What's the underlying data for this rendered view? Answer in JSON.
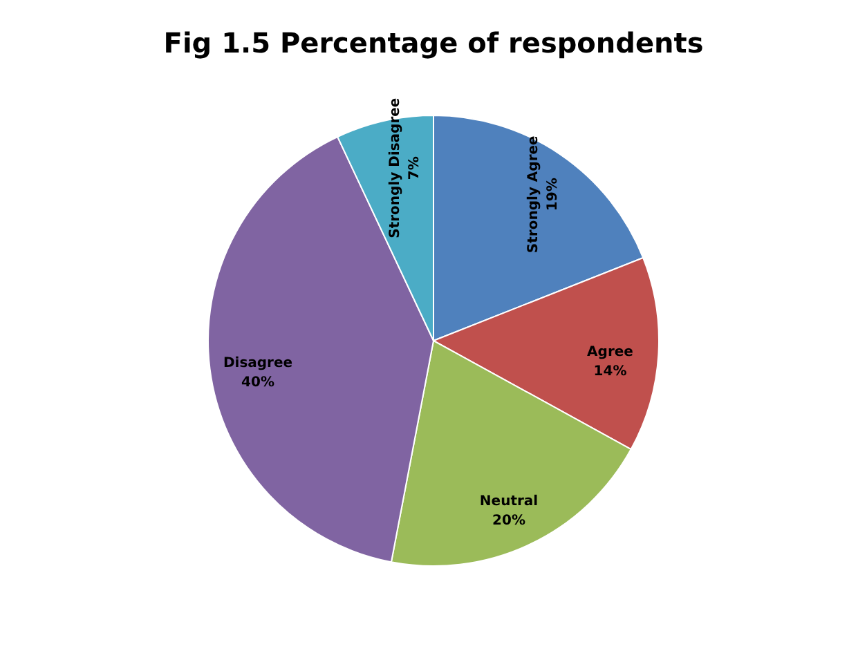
{
  "chart_data": {
    "type": "pie",
    "title": "Fig 1.5 Percentage of respondents",
    "categories": [
      "Strongly Agree",
      "Agree",
      "Neutral",
      "Disagree",
      "Strongly Disagree"
    ],
    "values": [
      19,
      14,
      20,
      40,
      7
    ],
    "colors": [
      "#4f81bd",
      "#c0504d",
      "#9bbb59",
      "#8064a2",
      "#4bacc6"
    ],
    "value_labels": [
      "19%",
      "14%",
      "20%",
      "40%",
      "7%"
    ],
    "legend": false
  }
}
